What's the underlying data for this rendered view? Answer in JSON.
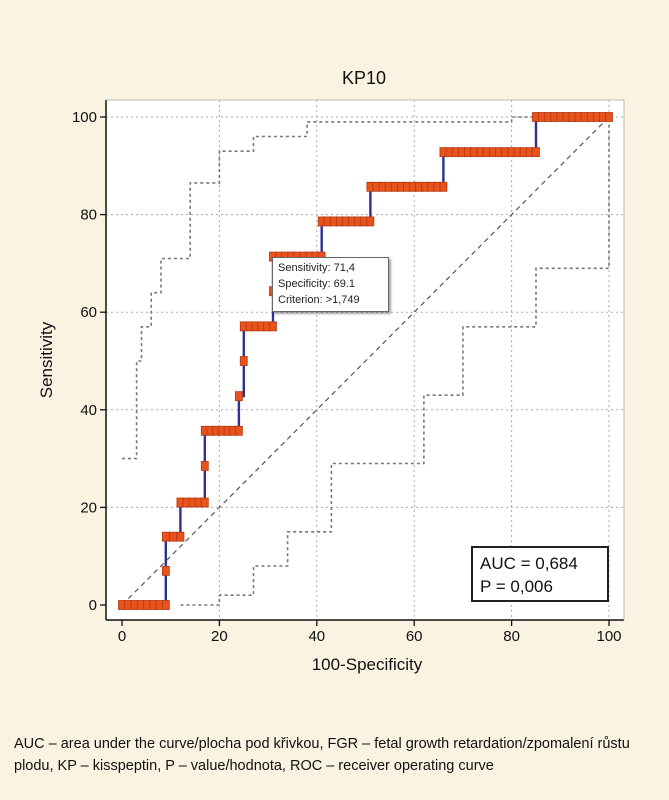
{
  "chart_data": {
    "type": "line",
    "title": "KP10",
    "xlabel": "100-Specificity",
    "ylabel": "Sensitivity",
    "xlim": [
      0,
      100
    ],
    "ylim": [
      0,
      100
    ],
    "xticks": [
      "0",
      "20",
      "40",
      "60",
      "80",
      "100"
    ],
    "yticks": [
      "0",
      "20",
      "40",
      "60",
      "80",
      "100"
    ],
    "grid": true,
    "roc_curve": [
      [
        0,
        0
      ],
      [
        9,
        0
      ],
      [
        9,
        7
      ],
      [
        9,
        14
      ],
      [
        12,
        14
      ],
      [
        12,
        21
      ],
      [
        17,
        21
      ],
      [
        17,
        28.5
      ],
      [
        17,
        35.7
      ],
      [
        24,
        35.7
      ],
      [
        24,
        42.8
      ],
      [
        25,
        42.8
      ],
      [
        25,
        50
      ],
      [
        25,
        57.1
      ],
      [
        31,
        57.1
      ],
      [
        31,
        64.3
      ],
      [
        31,
        71.4
      ],
      [
        41,
        71.4
      ],
      [
        41,
        78.6
      ],
      [
        51,
        78.6
      ],
      [
        51,
        85.7
      ],
      [
        66,
        85.7
      ],
      [
        66,
        92.8
      ],
      [
        85,
        92.8
      ],
      [
        85,
        100
      ],
      [
        100,
        100
      ]
    ],
    "marker_steps": [
      [
        0,
        9,
        0
      ],
      [
        9,
        12,
        14
      ],
      [
        12,
        17,
        21
      ],
      [
        17,
        24,
        35.7
      ],
      [
        25,
        31,
        57.1
      ],
      [
        31,
        41,
        71.4
      ],
      [
        41,
        51,
        78.6
      ],
      [
        51,
        66,
        85.7
      ],
      [
        66,
        85,
        92.8
      ],
      [
        85,
        100,
        100
      ]
    ],
    "marker_singles": [
      [
        9,
        7
      ],
      [
        17,
        28.5
      ],
      [
        24,
        42.8
      ],
      [
        25,
        50
      ],
      [
        31,
        64.3
      ]
    ],
    "upper_ci": [
      [
        0,
        30
      ],
      [
        3,
        30
      ],
      [
        3,
        50
      ],
      [
        4,
        50
      ],
      [
        4,
        57
      ],
      [
        6,
        57
      ],
      [
        6,
        64
      ],
      [
        8,
        64
      ],
      [
        8,
        71
      ],
      [
        14,
        71
      ],
      [
        14,
        86.5
      ],
      [
        20,
        86.5
      ],
      [
        20,
        93
      ],
      [
        27,
        93
      ],
      [
        27,
        96
      ],
      [
        38,
        96
      ],
      [
        38,
        99
      ],
      [
        80,
        99
      ],
      [
        80,
        100
      ],
      [
        100,
        100
      ]
    ],
    "lower_ci": [
      [
        12,
        0
      ],
      [
        20,
        0
      ],
      [
        20,
        2
      ],
      [
        27,
        2
      ],
      [
        27,
        8
      ],
      [
        34,
        8
      ],
      [
        34,
        15
      ],
      [
        43,
        15
      ],
      [
        43,
        29
      ],
      [
        62,
        29
      ],
      [
        62,
        43
      ],
      [
        70,
        43
      ],
      [
        70,
        57
      ],
      [
        85,
        57
      ],
      [
        85,
        69
      ],
      [
        100,
        69
      ],
      [
        100,
        100
      ]
    ],
    "diagonal": [
      [
        0,
        0
      ],
      [
        100,
        100
      ]
    ],
    "colors": {
      "curve": "#2e3192",
      "marker_fill": "#e8521c",
      "marker_edge": "#b23a10",
      "ci": "#777777",
      "grid": "#aaaaaa",
      "diagonal": "#555555"
    },
    "tooltip": {
      "sensitivity": "Sensitivity: 71,4",
      "specificity": "Specificity: 69.1",
      "criterion": "Criterion: >1,749"
    },
    "stats": {
      "auc": "AUC = 0,684",
      "p": "P = 0,006"
    }
  },
  "caption": "AUC – area under the curve/plocha pod křivkou, FGR – fetal growth retardation/zpomalení růstu plodu, KP – kisspeptin, P – value/hodnota, ROC – receiver operating curve"
}
